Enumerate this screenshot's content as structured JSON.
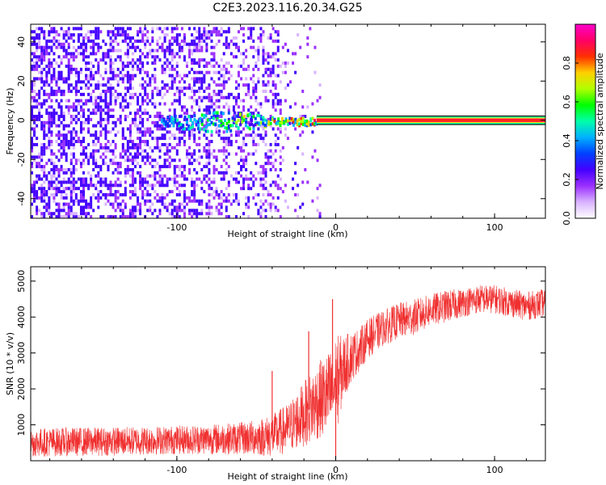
{
  "title": "C2E3.2023.116.20.34.G25",
  "chart_data": [
    {
      "type": "heatmap",
      "panel": "top",
      "xlabel": "Height of straight line (km)",
      "ylabel": "Frequency (Hz)",
      "xlim": [
        -192,
        132
      ],
      "ylim": [
        -50,
        49
      ],
      "xticks": [
        -100,
        0,
        100
      ],
      "yticks": [
        -40,
        -20,
        0,
        20,
        40
      ],
      "colorbar": {
        "label": "Normalized spectral amplitude",
        "range": [
          0,
          1
        ],
        "ticks": [
          0.0,
          0.2,
          0.4,
          0.6,
          0.8
        ],
        "colors": [
          "#ffffff",
          "#d9b3ff",
          "#9b30ff",
          "#4400ff",
          "#0040ff",
          "#00b0ff",
          "#00ffaa",
          "#00ff00",
          "#b0ff00",
          "#ffd000",
          "#ff3000",
          "#ff0066",
          "#ff00cc"
        ]
      },
      "features": {
        "scatter_region_x": [
          -192,
          -35
        ],
        "faint_region_x": [
          -35,
          -10
        ],
        "ridge_frequency": 0,
        "ridge_x": [
          -110,
          132
        ],
        "strong_line_x": [
          -12,
          132
        ],
        "strong_line_width_hz": 1.5
      }
    },
    {
      "type": "line",
      "panel": "bottom",
      "xlabel": "Height of straight line (km)",
      "ylabel": "SNR (10 * v/v)",
      "xlim": [
        -192,
        132
      ],
      "ylim": [
        0,
        5400
      ],
      "xticks": [
        -100,
        0,
        100
      ],
      "yticks": [
        1000,
        2000,
        3000,
        4000,
        5000
      ],
      "color": "#f03030",
      "series": [
        {
          "x": [
            -192,
            -180,
            -160,
            -140,
            -120,
            -100,
            -80,
            -60,
            -50,
            -40,
            -35,
            -30,
            -25,
            -20,
            -15,
            -10,
            -5,
            0,
            5,
            10,
            15,
            20,
            30,
            40,
            50,
            60,
            70,
            80,
            90,
            100,
            110,
            120,
            132
          ],
          "values": [
            500,
            520,
            530,
            540,
            560,
            580,
            600,
            620,
            650,
            700,
            800,
            900,
            1100,
            1300,
            1500,
            1700,
            1800,
            2100,
            2600,
            2900,
            3100,
            3400,
            3700,
            3900,
            4000,
            4200,
            4300,
            4400,
            4500,
            4500,
            4400,
            4300,
            4400
          ],
          "noise_amplitude": [
            400,
            400,
            400,
            400,
            400,
            400,
            420,
            450,
            500,
            600,
            650,
            700,
            800,
            900,
            1000,
            1100,
            1200,
            1400,
            900,
            700,
            600,
            550,
            500,
            500,
            500,
            450,
            450,
            400,
            400,
            400,
            400,
            400,
            400
          ]
        }
      ],
      "spikes": [
        {
          "x": -40,
          "value": 2500
        },
        {
          "x": -17,
          "value": 3600
        },
        {
          "x": -2,
          "value": 4500
        },
        {
          "x": 0,
          "value": 0
        }
      ]
    }
  ]
}
